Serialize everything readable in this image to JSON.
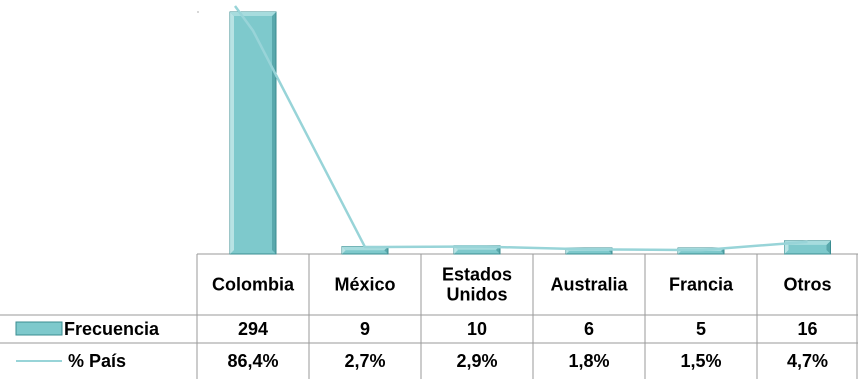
{
  "chart_data": {
    "type": "bar",
    "categories": [
      "Colombia",
      "México",
      "Estados Unidos",
      "Australia",
      "Francia",
      "Otros"
    ],
    "category_lines": [
      [
        "Colombia"
      ],
      [
        "México"
      ],
      [
        "Estados",
        "Unidos"
      ],
      [
        "Australia"
      ],
      [
        "Francia"
      ],
      [
        "Otros"
      ]
    ],
    "series": [
      {
        "name": "Frecuencia",
        "type": "bar",
        "values": [
          294,
          9,
          10,
          6,
          5,
          16
        ],
        "labels": [
          "294",
          "9",
          "10",
          "6",
          "5",
          "16"
        ]
      },
      {
        "name": "% País",
        "type": "line",
        "values": [
          86.4,
          2.7,
          2.9,
          1.8,
          1.5,
          4.7
        ],
        "labels": [
          "86,4%",
          "2,7%",
          "2,9%",
          "1,8%",
          "1,5%",
          "4,7%"
        ]
      }
    ],
    "bar_ylim": [
      0,
      294
    ],
    "line_ylim": [
      0,
      93.6
    ],
    "legend": "data-table",
    "grid": false,
    "colors": {
      "bar_fill": "#7ec9cc",
      "bar_light": "#c2e7e8",
      "bar_dark": "#3b8d91",
      "bar_top": "#a7dcde",
      "line": "#98d4d8",
      "table_line": "#9a9a9a",
      "tick": "#b0b0b0"
    }
  }
}
